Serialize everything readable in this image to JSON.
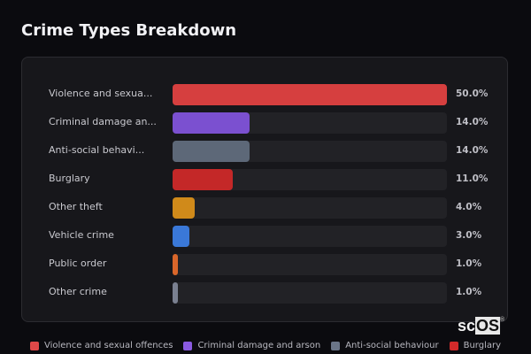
{
  "header": {
    "title": "Crime Types Breakdown"
  },
  "chart_data": {
    "type": "bar",
    "orientation": "horizontal",
    "title": "Crime Types Breakdown",
    "categories": [
      "Violence and sexual offences",
      "Criminal damage and arson",
      "Anti-social behaviour",
      "Burglary",
      "Other theft",
      "Vehicle crime",
      "Public order",
      "Other crime"
    ],
    "display_labels": [
      "Violence and sexua...",
      "Criminal damage an...",
      "Anti-social behavi...",
      "Burglary",
      "Other theft",
      "Vehicle crime",
      "Public order",
      "Other crime"
    ],
    "values": [
      50.0,
      14.0,
      14.0,
      11.0,
      4.0,
      3.0,
      1.0,
      1.0
    ],
    "value_labels": [
      "50.0%",
      "14.0%",
      "14.0%",
      "11.0%",
      "4.0%",
      "3.0%",
      "1.0%",
      "1.0%"
    ],
    "colors": [
      "#d63f3f",
      "#7b50d0",
      "#5d6878",
      "#c42828",
      "#d08a1a",
      "#3a78d8",
      "#d9662a",
      "#7a8090"
    ],
    "xlabel": "",
    "ylabel": "",
    "xlim": [
      0,
      50
    ],
    "legend": [
      "Violence and sexual offences",
      "Criminal damage and arson",
      "Anti-social behaviour",
      "Burglary"
    ],
    "legend_position": "bottom"
  },
  "rows": [
    {
      "label": "Violence and sexua...",
      "value": "50.0%",
      "pct": 100,
      "color": "#d63f3f"
    },
    {
      "label": "Criminal damage an...",
      "value": "14.0%",
      "pct": 28,
      "color": "#7b50d0"
    },
    {
      "label": "Anti-social behavi...",
      "value": "14.0%",
      "pct": 28,
      "color": "#5d6878"
    },
    {
      "label": "Burglary",
      "value": "11.0%",
      "pct": 22,
      "color": "#c42828"
    },
    {
      "label": "Other theft",
      "value": "4.0%",
      "pct": 8,
      "color": "#d08a1a"
    },
    {
      "label": "Vehicle crime",
      "value": "3.0%",
      "pct": 6,
      "color": "#3a78d8"
    },
    {
      "label": "Public order",
      "value": "1.0%",
      "pct": 2,
      "color": "#d9662a"
    },
    {
      "label": "Other crime",
      "value": "1.0%",
      "pct": 2,
      "color": "#7a8090"
    }
  ],
  "legend": [
    {
      "label": "Violence and sexual offences",
      "color": "#e04848"
    },
    {
      "label": "Criminal damage and arson",
      "color": "#8a5ae0"
    },
    {
      "label": "Anti-social behaviour",
      "color": "#6a7588"
    },
    {
      "label": "Burglary",
      "color": "#d22a2a"
    }
  ],
  "logo": {
    "text_a": "sc",
    "text_b": "OS",
    "reg": "®"
  }
}
